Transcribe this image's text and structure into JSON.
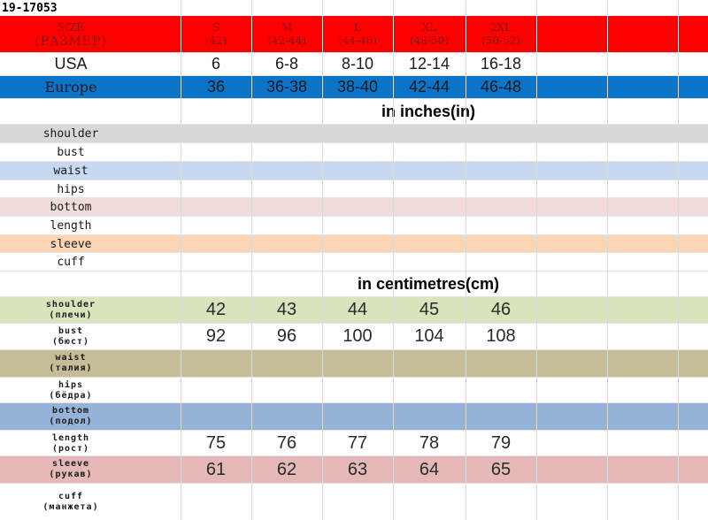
{
  "sheet": {
    "code": "19-17053",
    "sizes_row": {
      "label_1": "SIZE",
      "label_2": "(РАЗМЕР)",
      "cols": [
        {
          "size": "S",
          "range": "(42)"
        },
        {
          "size": "M",
          "range": "(42-44)"
        },
        {
          "size": "L",
          "range": "(44-46)"
        },
        {
          "size": "XL",
          "range": "(48-50)"
        },
        {
          "size": "2XL",
          "range": "(50-52)"
        }
      ]
    },
    "usa_row": {
      "label": "USA",
      "values": [
        "6",
        "6-8",
        "8-10",
        "12-14",
        "16-18"
      ]
    },
    "europe_row": {
      "label": "Europe",
      "values": [
        "36",
        "36-38",
        "38-40",
        "42-44",
        "46-48"
      ]
    },
    "inches": {
      "title": "in inches(in)",
      "rows": [
        "shoulder",
        "bust",
        "waist",
        "hips",
        "bottom",
        "length",
        "sleeve",
        "cuff"
      ]
    },
    "cm": {
      "title": "in centimetres(cm)",
      "rows": [
        {
          "en": "shoulder",
          "ru": "(плечи)",
          "values": [
            "42",
            "43",
            "44",
            "45",
            "46"
          ]
        },
        {
          "en": "bust",
          "ru": "(бюст)",
          "values": [
            "92",
            "96",
            "100",
            "104",
            "108"
          ]
        },
        {
          "en": "waist",
          "ru": "(талия)",
          "values": [
            "",
            "",
            "",
            "",
            ""
          ]
        },
        {
          "en": "hips",
          "ru": "(бёдра)",
          "values": [
            "",
            "",
            "",
            "",
            ""
          ]
        },
        {
          "en": "bottom",
          "ru": "(подол)",
          "values": [
            "",
            "",
            "",
            "",
            ""
          ]
        },
        {
          "en": "length",
          "ru": "(рост)",
          "values": [
            "75",
            "76",
            "77",
            "78",
            "79"
          ]
        },
        {
          "en": "sleeve",
          "ru": "(рукав)",
          "values": [
            "61",
            "62",
            "63",
            "64",
            "65"
          ]
        },
        {
          "en": "cuff",
          "ru": "(манжета)",
          "values": [
            "",
            "",
            "",
            "",
            ""
          ]
        }
      ]
    }
  },
  "colors": {
    "size_row": "#ff0000",
    "europe_row": "#0a74c9",
    "inch_rows": [
      "#d8d8d8",
      "#ffffff",
      "#c6d9f0",
      "#ffffff",
      "#f2dcdb",
      "#ffffff",
      "#fcd5b4",
      "#ffffff"
    ],
    "cm_rows": [
      "#d7e4bc",
      "#ffffff",
      "#c4bd97",
      "#ffffff",
      "#95b3d7",
      "#ffffff",
      "#e6b9b8",
      "#ffffff"
    ]
  }
}
